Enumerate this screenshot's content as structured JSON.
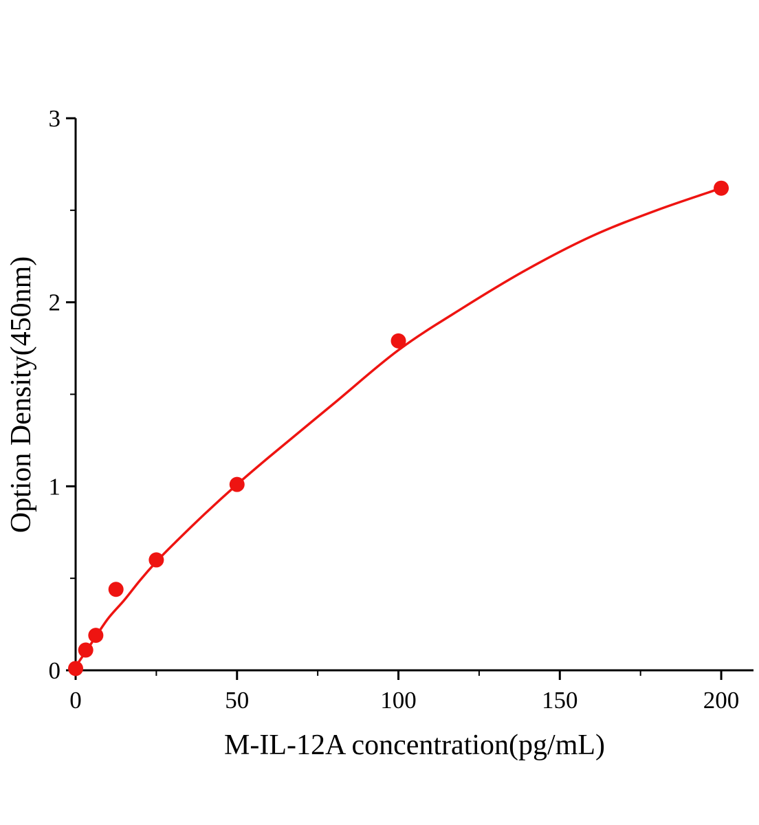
{
  "page": {
    "background": "#ffffff"
  },
  "chart_data": {
    "type": "scatter",
    "title": "",
    "xlabel": "M-IL-12A concentration(pg/mL)",
    "ylabel": "Option Density(450nm)",
    "xlim": [
      0,
      210
    ],
    "ylim": [
      0,
      3
    ],
    "x_ticks": [
      0,
      50,
      100,
      150,
      200
    ],
    "y_ticks": [
      0,
      1,
      2,
      3
    ],
    "x_minor_ticks": [
      25,
      75,
      125,
      175
    ],
    "y_minor_ticks": [
      0.5,
      1.5,
      2.5
    ],
    "grid": false,
    "legend_position": "none",
    "accent_color": "#ee1411",
    "axis_color": "#000000",
    "series": [
      {
        "name": "standard-points",
        "type": "scatter",
        "x": [
          0,
          3.125,
          6.25,
          12.5,
          25,
          50,
          100,
          200
        ],
        "y": [
          0.01,
          0.11,
          0.19,
          0.44,
          0.6,
          1.01,
          1.79,
          2.62
        ]
      },
      {
        "name": "fit-curve",
        "type": "line",
        "x": [
          0,
          5,
          10,
          15,
          20,
          25,
          30,
          40,
          50,
          60,
          80,
          100,
          120,
          140,
          160,
          180,
          200
        ],
        "y": [
          0.02,
          0.15,
          0.28,
          0.38,
          0.49,
          0.59,
          0.68,
          0.85,
          1.01,
          1.16,
          1.45,
          1.74,
          1.97,
          2.18,
          2.36,
          2.5,
          2.62
        ]
      }
    ]
  }
}
